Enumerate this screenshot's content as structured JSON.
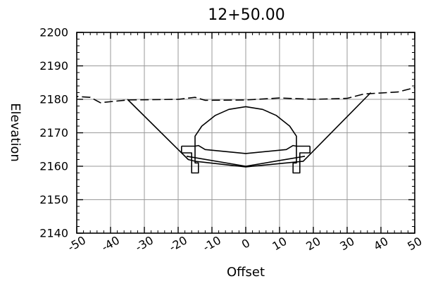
{
  "chart_data": {
    "type": "line",
    "title": "12+50.00",
    "xlabel": "Offset",
    "ylabel": "Elevation",
    "xlim": [
      -50,
      50
    ],
    "ylim": [
      2140,
      2200
    ],
    "grid": true,
    "x_ticks": [
      -50,
      -40,
      -30,
      -20,
      -10,
      0,
      10,
      20,
      30,
      40,
      50
    ],
    "y_ticks": [
      2140,
      2150,
      2160,
      2170,
      2180,
      2190,
      2200
    ],
    "series": [
      {
        "style": "dashed",
        "points": [
          [
            -52,
            2181
          ],
          [
            -46,
            2180.6
          ],
          [
            -43,
            2179
          ],
          [
            -35,
            2179.8
          ],
          [
            -20,
            2180
          ],
          [
            -15,
            2180.6
          ],
          [
            -12,
            2179.7
          ],
          [
            0,
            2179.8
          ],
          [
            10,
            2180.4
          ],
          [
            20,
            2180
          ],
          [
            30,
            2180.3
          ],
          [
            35,
            2181.6
          ],
          [
            45,
            2182.2
          ],
          [
            50,
            2183.5
          ]
        ]
      },
      {
        "style": "solid",
        "points": [
          [
            -35,
            2180
          ],
          [
            -17,
            2162
          ],
          [
            -15,
            2161.5
          ],
          [
            0,
            2159.8
          ],
          [
            17,
            2161.5
          ],
          [
            37,
            2182
          ]
        ]
      },
      {
        "style": "solid",
        "points": [
          [
            -17.5,
            2163
          ],
          [
            0,
            2160
          ],
          [
            17.5,
            2163
          ]
        ]
      },
      {
        "style": "solid",
        "points": [
          [
            -15,
            2166
          ],
          [
            -14,
            2166.2
          ],
          [
            -12,
            2165
          ],
          [
            0,
            2163.8
          ],
          [
            12,
            2165
          ],
          [
            14,
            2166.2
          ],
          [
            15,
            2166
          ]
        ]
      },
      {
        "style": "solid",
        "points": [
          [
            -15,
            2166
          ],
          [
            -15,
            2169
          ],
          [
            -13,
            2172
          ],
          [
            -9,
            2175.2
          ],
          [
            -5,
            2177
          ],
          [
            0,
            2177.8
          ],
          [
            5,
            2177
          ],
          [
            9,
            2175.2
          ],
          [
            13,
            2172
          ],
          [
            15,
            2169
          ],
          [
            15,
            2166
          ]
        ]
      },
      {
        "style": "solid",
        "points": [
          [
            -19,
            2166
          ],
          [
            -15,
            2166
          ],
          [
            -15,
            2161
          ],
          [
            -14,
            2161
          ],
          [
            -14,
            2158
          ],
          [
            -16,
            2158
          ],
          [
            -16,
            2164
          ],
          [
            -19,
            2164
          ],
          [
            -19,
            2166
          ]
        ]
      },
      {
        "style": "solid",
        "points": [
          [
            19,
            2166
          ],
          [
            15,
            2166
          ],
          [
            15,
            2161
          ],
          [
            14,
            2161
          ],
          [
            14,
            2158
          ],
          [
            16,
            2158
          ],
          [
            16,
            2164
          ],
          [
            19,
            2164
          ],
          [
            19,
            2166
          ]
        ]
      }
    ]
  }
}
